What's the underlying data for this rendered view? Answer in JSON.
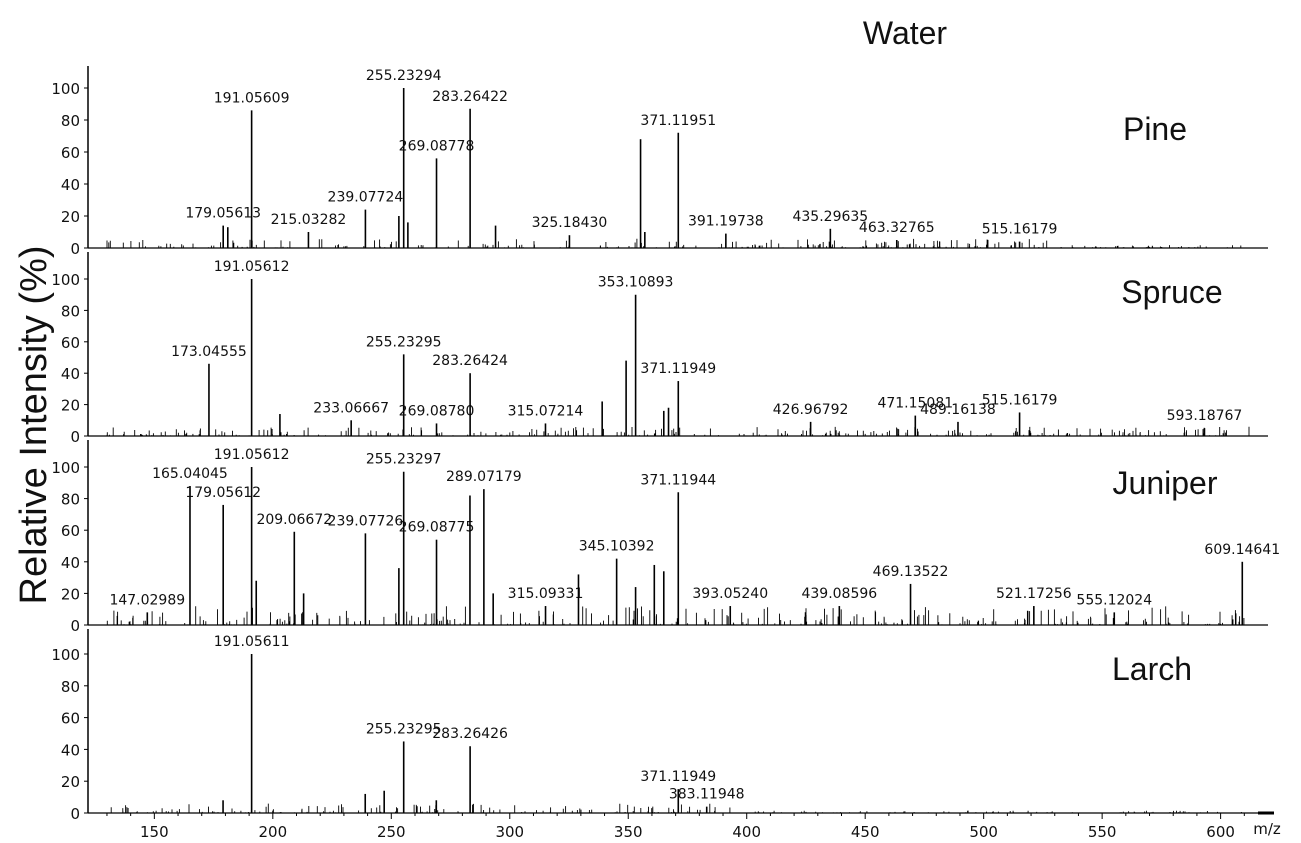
{
  "title": "Water",
  "ylabel": "Relative Intensity (%)",
  "xlabel": "m/z",
  "colors": {
    "line": "#000000",
    "text": "#111111",
    "background": "#ffffff"
  },
  "chart_data": {
    "type": "line",
    "x_range": [
      122,
      620
    ],
    "x_ticks": [
      150,
      200,
      250,
      300,
      350,
      400,
      450,
      500,
      550,
      600
    ],
    "y_range": [
      0,
      110
    ],
    "y_ticks": [
      0,
      20,
      40,
      60,
      80,
      100
    ],
    "panels": [
      {
        "name": "Pine",
        "peaks": [
          {
            "x": 179.05613,
            "y": 14,
            "label": "179.05613"
          },
          {
            "x": 181.0,
            "y": 13
          },
          {
            "x": 191.05609,
            "y": 86,
            "label": "191.05609"
          },
          {
            "x": 215.03282,
            "y": 10,
            "label": "215.03282"
          },
          {
            "x": 239.07724,
            "y": 24,
            "label": "239.07724"
          },
          {
            "x": 253.2,
            "y": 20
          },
          {
            "x": 255.23294,
            "y": 100,
            "label": "255.23294"
          },
          {
            "x": 257.0,
            "y": 16
          },
          {
            "x": 269.08778,
            "y": 56,
            "label": "269.08778"
          },
          {
            "x": 283.26422,
            "y": 87,
            "label": "283.26422"
          },
          {
            "x": 294.0,
            "y": 14
          },
          {
            "x": 325.1843,
            "y": 8,
            "label": "325.18430"
          },
          {
            "x": 355.2,
            "y": 68
          },
          {
            "x": 357.0,
            "y": 10
          },
          {
            "x": 371.11951,
            "y": 72,
            "label": "371.11951"
          },
          {
            "x": 391.19738,
            "y": 9,
            "label": "391.19738"
          },
          {
            "x": 435.29635,
            "y": 12,
            "label": "435.29635"
          },
          {
            "x": 463.32765,
            "y": 5,
            "label": "463.32765"
          },
          {
            "x": 515.16179,
            "y": 4,
            "label": "515.16179"
          }
        ]
      },
      {
        "name": "Spruce",
        "peaks": [
          {
            "x": 173.04555,
            "y": 46,
            "label": "173.04555"
          },
          {
            "x": 191.05612,
            "y": 100,
            "label": "191.05612"
          },
          {
            "x": 203.0,
            "y": 14
          },
          {
            "x": 233.06667,
            "y": 10,
            "label": "233.06667"
          },
          {
            "x": 255.23295,
            "y": 52,
            "label": "255.23295"
          },
          {
            "x": 269.0878,
            "y": 8,
            "label": "269.08780"
          },
          {
            "x": 283.26424,
            "y": 40,
            "label": "283.26424"
          },
          {
            "x": 315.07214,
            "y": 8,
            "label": "315.07214"
          },
          {
            "x": 339.0,
            "y": 22
          },
          {
            "x": 349.1,
            "y": 48
          },
          {
            "x": 353.10893,
            "y": 90,
            "label": "353.10893"
          },
          {
            "x": 365.0,
            "y": 16
          },
          {
            "x": 367.0,
            "y": 18
          },
          {
            "x": 371.11949,
            "y": 35,
            "label": "371.11949"
          },
          {
            "x": 426.96792,
            "y": 9,
            "label": "426.96792"
          },
          {
            "x": 471.15081,
            "y": 13,
            "label": "471.15081"
          },
          {
            "x": 489.16138,
            "y": 9,
            "label": "489.16138"
          },
          {
            "x": 515.16179,
            "y": 15,
            "label": "515.16179"
          },
          {
            "x": 593.18767,
            "y": 5,
            "label": "593.18767"
          }
        ]
      },
      {
        "name": "Juniper",
        "peaks": [
          {
            "x": 147.02989,
            "y": 8,
            "label": "147.02989"
          },
          {
            "x": 165.04045,
            "y": 88,
            "label": "165.04045"
          },
          {
            "x": 179.05612,
            "y": 76,
            "label": "179.05612"
          },
          {
            "x": 191.05612,
            "y": 100,
            "label": "191.05612"
          },
          {
            "x": 193.0,
            "y": 28
          },
          {
            "x": 209.06672,
            "y": 59,
            "label": "209.06672"
          },
          {
            "x": 213.0,
            "y": 20
          },
          {
            "x": 239.07726,
            "y": 58,
            "label": "239.07726"
          },
          {
            "x": 253.2,
            "y": 36
          },
          {
            "x": 255.23297,
            "y": 97,
            "label": "255.23297"
          },
          {
            "x": 269.08775,
            "y": 54,
            "label": "269.08775"
          },
          {
            "x": 283.2,
            "y": 82
          },
          {
            "x": 289.07179,
            "y": 86,
            "label": "289.07179"
          },
          {
            "x": 293.0,
            "y": 20
          },
          {
            "x": 315.09331,
            "y": 12,
            "label": "315.09331"
          },
          {
            "x": 329.0,
            "y": 32
          },
          {
            "x": 345.10392,
            "y": 42,
            "label": "345.10392"
          },
          {
            "x": 353.1,
            "y": 24
          },
          {
            "x": 361.0,
            "y": 38
          },
          {
            "x": 365.0,
            "y": 34
          },
          {
            "x": 371.11944,
            "y": 84,
            "label": "371.11944"
          },
          {
            "x": 393.0524,
            "y": 12,
            "label": "393.05240"
          },
          {
            "x": 439.08596,
            "y": 12,
            "label": "439.08596"
          },
          {
            "x": 469.13522,
            "y": 26,
            "label": "469.13522"
          },
          {
            "x": 521.17256,
            "y": 12,
            "label": "521.17256"
          },
          {
            "x": 555.12024,
            "y": 8,
            "label": "555.12024"
          },
          {
            "x": 609.14641,
            "y": 40,
            "label": "609.14641"
          }
        ]
      },
      {
        "name": "Larch",
        "peaks": [
          {
            "x": 179.0,
            "y": 8
          },
          {
            "x": 191.05611,
            "y": 100,
            "label": "191.05611"
          },
          {
            "x": 239.0,
            "y": 12
          },
          {
            "x": 247.0,
            "y": 14
          },
          {
            "x": 255.23295,
            "y": 45,
            "label": "255.23295"
          },
          {
            "x": 269.0,
            "y": 8
          },
          {
            "x": 283.26426,
            "y": 42,
            "label": "283.26426"
          },
          {
            "x": 371.11949,
            "y": 15,
            "label": "371.11949"
          },
          {
            "x": 383.11948,
            "y": 4,
            "label": "383.11948"
          }
        ]
      }
    ]
  }
}
